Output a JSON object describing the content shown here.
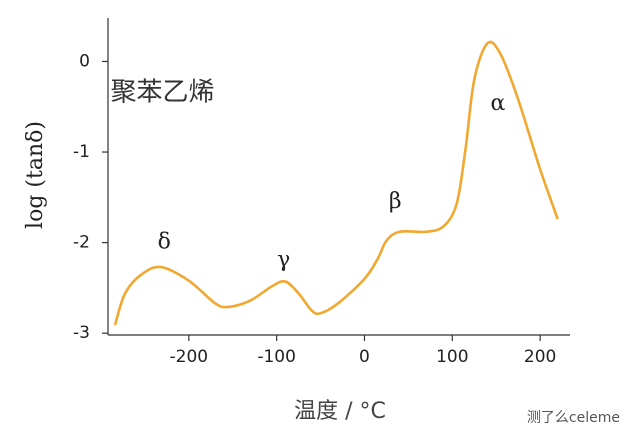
{
  "chart_data": {
    "type": "line",
    "annotation_title": "聚苯乙烯",
    "xlabel": "温度 / °C",
    "ylabel": "log (tanδ)",
    "watermark": "测了么celeme",
    "x": [
      -284,
      -273,
      -255,
      -232,
      -200,
      -170,
      -155,
      -130,
      -105,
      -90,
      -75,
      -60,
      -50,
      -30,
      0,
      15,
      25,
      40,
      70,
      90,
      105,
      115,
      125,
      140,
      155,
      175,
      200,
      220
    ],
    "series": [
      {
        "color": "#f0a830",
        "values": [
          -2.91,
          -2.57,
          -2.36,
          -2.27,
          -2.42,
          -2.67,
          -2.71,
          -2.64,
          -2.48,
          -2.43,
          -2.56,
          -2.75,
          -2.78,
          -2.67,
          -2.4,
          -2.18,
          -1.98,
          -1.88,
          -1.88,
          -1.82,
          -1.57,
          -0.97,
          -0.2,
          0.2,
          0.08,
          -0.42,
          -1.19,
          -1.74
        ]
      }
    ],
    "annotations": [
      {
        "text": "δ",
        "x": -228,
        "y": -2.0
      },
      {
        "text": "γ",
        "x": -92,
        "y": -2.2
      },
      {
        "text": "β",
        "x": 35,
        "y": -1.55
      },
      {
        "text": "α",
        "x": 152,
        "y": -0.47
      }
    ],
    "title_at": {
      "x": -230,
      "y": -0.35
    },
    "xlim": [
      -292,
      234
    ],
    "ylim": [
      -3.02,
      0.48
    ],
    "xticks": [
      -200,
      -100,
      0,
      100,
      200
    ],
    "yticks": [
      -3,
      -2,
      -1,
      0
    ]
  }
}
